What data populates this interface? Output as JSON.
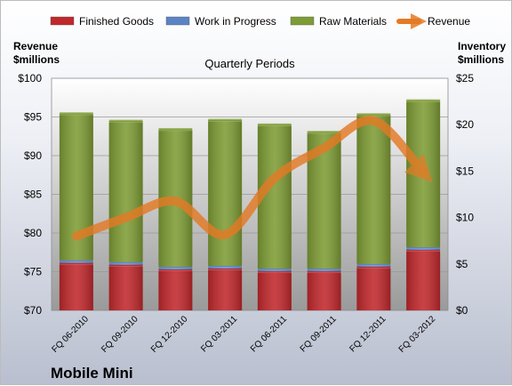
{
  "chart_data": {
    "type": "bar",
    "title": "Quarterly Periods",
    "company": "Mobile Mini",
    "left_axis_label": [
      "Revenue",
      "$millions"
    ],
    "right_axis_label": [
      "Inventory",
      "$millions"
    ],
    "left_ylim": [
      70,
      100
    ],
    "right_ylim": [
      0,
      25
    ],
    "left_ticks": [
      "$70",
      "$75",
      "$80",
      "$85",
      "$90",
      "$95",
      "$100"
    ],
    "right_ticks": [
      "$0",
      "$5",
      "$10",
      "$15",
      "$20",
      "$25"
    ],
    "categories": [
      "FQ 06-2010",
      "FQ 09-2010",
      "FQ 12-2010",
      "FQ 03-2011",
      "FQ 06-2011",
      "FQ 09-2011",
      "FQ 12-2011",
      "FQ 03-2012"
    ],
    "stacked_series": [
      {
        "name": "Finished Goods",
        "axis": "right",
        "color": "#c0282c",
        "values": [
          5.1,
          4.9,
          4.4,
          4.5,
          4.2,
          4.2,
          4.7,
          6.5
        ]
      },
      {
        "name": "Work in Progress",
        "axis": "right",
        "color": "#5b84c4",
        "values": [
          0.3,
          0.3,
          0.3,
          0.3,
          0.3,
          0.3,
          0.3,
          0.3
        ]
      },
      {
        "name": "Raw Materials",
        "axis": "right",
        "color": "#7e9c35",
        "values": [
          15.8,
          15.2,
          14.8,
          15.7,
          15.5,
          14.7,
          16.1,
          15.8
        ]
      }
    ],
    "line_series": {
      "name": "Revenue",
      "axis": "left",
      "color": "#e47a25",
      "values": [
        79.6,
        82.0,
        84.1,
        79.8,
        87.1,
        91.0,
        94.5,
        87.8
      ]
    },
    "legend_position": "top",
    "grid": true
  }
}
